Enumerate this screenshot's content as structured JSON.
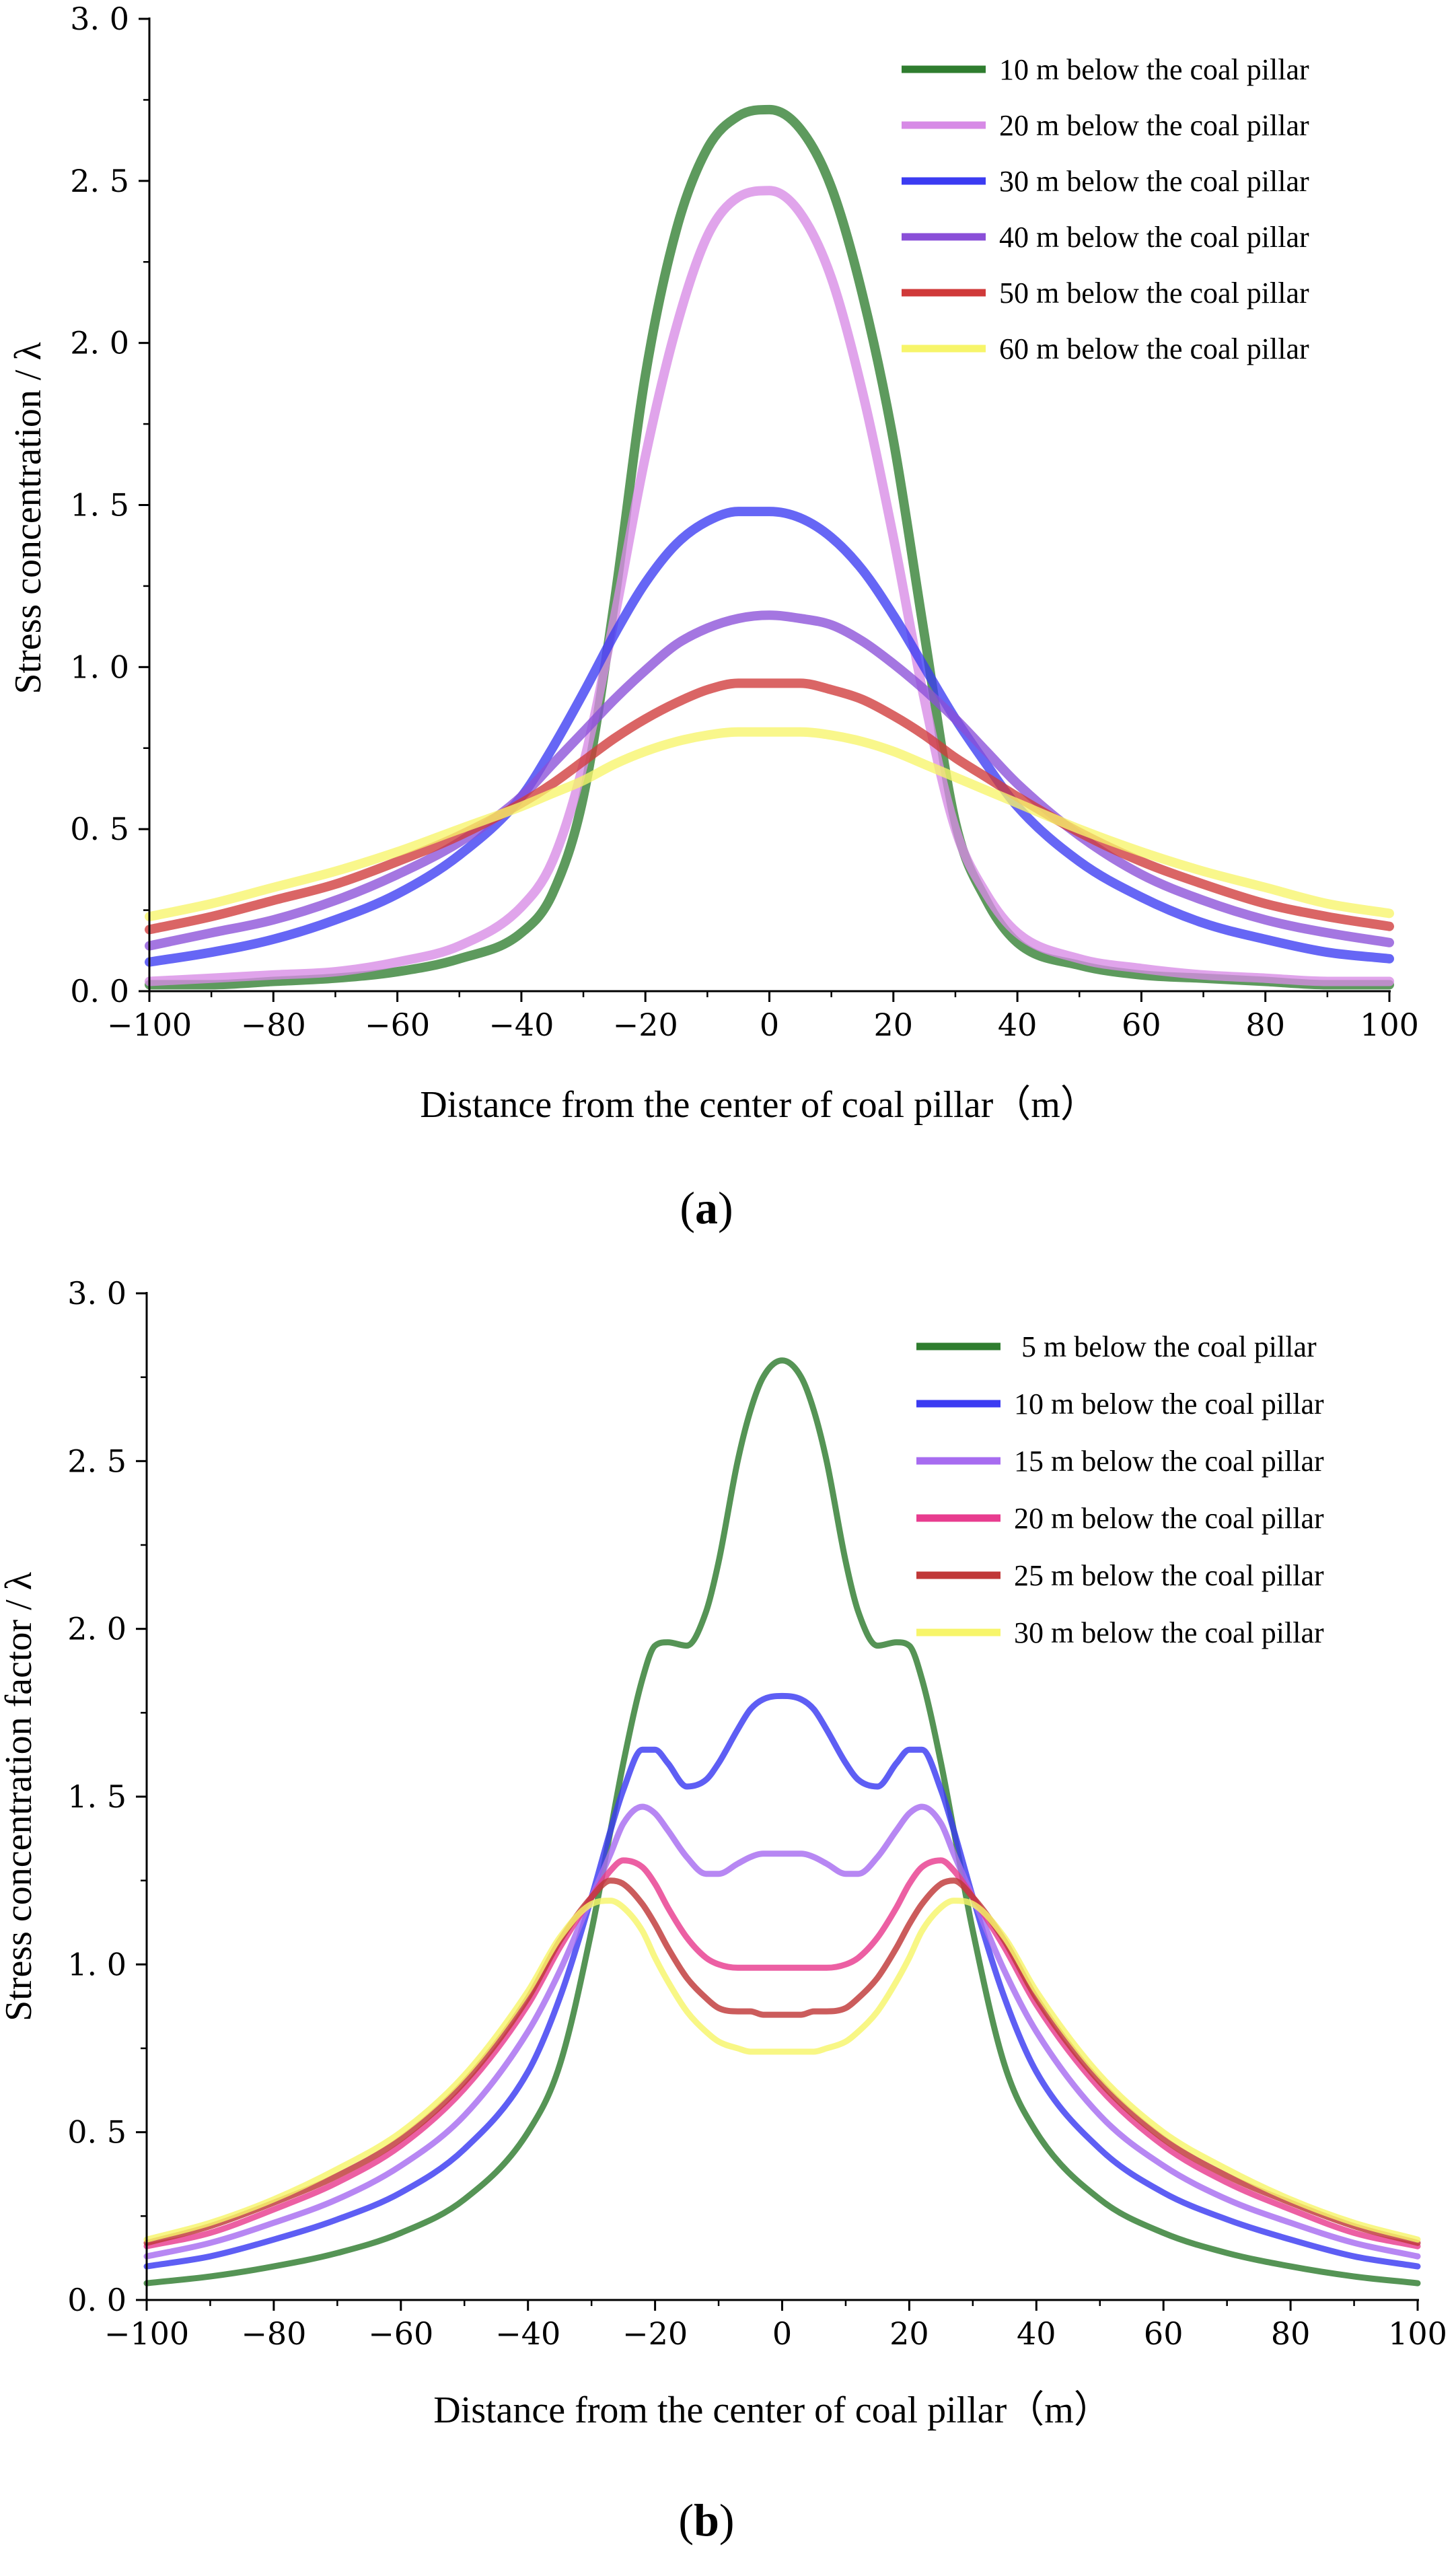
{
  "chart_data": [
    {
      "type": "line",
      "panel": "a",
      "caption_open": "(",
      "caption_letter": "a",
      "caption_close": ")",
      "xlabel": "Distance from the center of coal pillar（m）",
      "ylabel": "Stress concentration / λ",
      "xlim": [
        -100,
        100
      ],
      "ylim": [
        0,
        3.0
      ],
      "xticks": [
        -100,
        -80,
        -60,
        -40,
        -20,
        0,
        20,
        40,
        60,
        80,
        100
      ],
      "xtick_labels": [
        "−100",
        "−80",
        "−60",
        "−40",
        "−20",
        "0",
        "20",
        "40",
        "60",
        "80",
        "100"
      ],
      "yticks": [
        0,
        0.5,
        1.0,
        1.5,
        2.0,
        2.5,
        3.0
      ],
      "ytick_labels": [
        "0. 0",
        "0. 5",
        "1. 0",
        "1. 5",
        "2. 0",
        "2. 5",
        "3. 0"
      ],
      "grid": false,
      "legend_position": "top-right",
      "x": [
        -100,
        -90,
        -80,
        -70,
        -60,
        -50,
        -40,
        -35,
        -30,
        -25,
        -20,
        -15,
        -10,
        -5,
        0,
        5,
        10,
        15,
        20,
        25,
        30,
        35,
        40,
        50,
        60,
        70,
        80,
        90,
        100
      ],
      "series": [
        {
          "name": "10 m below the coal pillar",
          "color": "#2f7d2f",
          "values": [
            0.02,
            0.02,
            0.03,
            0.04,
            0.06,
            0.1,
            0.18,
            0.3,
            0.6,
            1.2,
            1.9,
            2.35,
            2.6,
            2.7,
            2.72,
            2.66,
            2.48,
            2.15,
            1.7,
            1.1,
            0.52,
            0.28,
            0.15,
            0.08,
            0.05,
            0.04,
            0.03,
            0.02,
            0.02
          ]
        },
        {
          "name": "20 m below the coal pillar",
          "color": "#d78ae6",
          "values": [
            0.03,
            0.04,
            0.05,
            0.06,
            0.09,
            0.14,
            0.26,
            0.4,
            0.7,
            1.15,
            1.65,
            2.05,
            2.33,
            2.45,
            2.47,
            2.4,
            2.2,
            1.85,
            1.4,
            0.9,
            0.5,
            0.3,
            0.18,
            0.1,
            0.07,
            0.05,
            0.04,
            0.03,
            0.03
          ]
        },
        {
          "name": "30 m below the coal pillar",
          "color": "#3b3bf2",
          "values": [
            0.09,
            0.12,
            0.16,
            0.22,
            0.3,
            0.42,
            0.6,
            0.75,
            0.92,
            1.1,
            1.26,
            1.38,
            1.45,
            1.48,
            1.48,
            1.46,
            1.4,
            1.3,
            1.16,
            1.0,
            0.84,
            0.7,
            0.57,
            0.4,
            0.29,
            0.21,
            0.16,
            0.12,
            0.1
          ]
        },
        {
          "name": "40 m below the coal pillar",
          "color": "#8a4fd8",
          "values": [
            0.14,
            0.18,
            0.22,
            0.28,
            0.36,
            0.46,
            0.6,
            0.7,
            0.8,
            0.9,
            0.99,
            1.07,
            1.12,
            1.15,
            1.16,
            1.15,
            1.13,
            1.08,
            1.01,
            0.93,
            0.84,
            0.74,
            0.64,
            0.48,
            0.36,
            0.28,
            0.22,
            0.18,
            0.15
          ]
        },
        {
          "name": "50 m below the coal pillar",
          "color": "#d03a3a",
          "values": [
            0.19,
            0.23,
            0.28,
            0.33,
            0.4,
            0.48,
            0.58,
            0.64,
            0.71,
            0.78,
            0.84,
            0.89,
            0.93,
            0.95,
            0.95,
            0.95,
            0.93,
            0.9,
            0.85,
            0.79,
            0.72,
            0.66,
            0.6,
            0.49,
            0.4,
            0.33,
            0.27,
            0.23,
            0.2
          ]
        },
        {
          "name": "60 m below the coal pillar",
          "color": "#f7f56a",
          "values": [
            0.23,
            0.27,
            0.32,
            0.37,
            0.43,
            0.5,
            0.57,
            0.61,
            0.65,
            0.7,
            0.74,
            0.77,
            0.79,
            0.8,
            0.8,
            0.8,
            0.79,
            0.77,
            0.74,
            0.7,
            0.66,
            0.62,
            0.58,
            0.5,
            0.43,
            0.37,
            0.32,
            0.27,
            0.24
          ]
        }
      ]
    },
    {
      "type": "line",
      "panel": "b",
      "caption_open": "(",
      "caption_letter": "b",
      "caption_close": ")",
      "xlabel": "Distance from the center of coal pillar（m）",
      "ylabel": "Stress concentration factor / λ",
      "xlim": [
        -100,
        100
      ],
      "ylim": [
        0,
        3.0
      ],
      "xticks": [
        -100,
        -80,
        -60,
        -40,
        -20,
        0,
        20,
        40,
        60,
        80,
        100
      ],
      "xtick_labels": [
        "−100",
        "−80",
        "−60",
        "−40",
        "−20",
        "0",
        "20",
        "40",
        "60",
        "80",
        "100"
      ],
      "yticks": [
        0,
        0.5,
        1.0,
        1.5,
        2.0,
        2.5,
        3.0
      ],
      "ytick_labels": [
        "0. 0",
        "0. 5",
        "1. 0",
        "1. 5",
        "2. 0",
        "2. 5",
        "3. 0"
      ],
      "grid": false,
      "legend_position": "top-right",
      "x": [
        -100,
        -90,
        -80,
        -70,
        -60,
        -50,
        -40,
        -35,
        -30,
        -27,
        -25,
        -22,
        -20,
        -18,
        -15,
        -12,
        -10,
        -7,
        -5,
        -3,
        0,
        3,
        5,
        7,
        10,
        12,
        15,
        18,
        20,
        22,
        25,
        27,
        30,
        35,
        40,
        50,
        60,
        70,
        80,
        90,
        100
      ],
      "series": [
        {
          "name": " 5 m below the coal pillar",
          "color": "#2f7d2f",
          "values": [
            0.05,
            0.07,
            0.1,
            0.14,
            0.2,
            0.3,
            0.5,
            0.7,
            1.1,
            1.4,
            1.6,
            1.85,
            1.95,
            1.96,
            1.95,
            2.05,
            2.2,
            2.5,
            2.65,
            2.75,
            2.8,
            2.75,
            2.65,
            2.5,
            2.2,
            2.05,
            1.95,
            1.96,
            1.95,
            1.85,
            1.6,
            1.4,
            1.1,
            0.7,
            0.5,
            0.3,
            0.2,
            0.14,
            0.1,
            0.07,
            0.05
          ]
        },
        {
          "name": "10 m below the coal pillar",
          "color": "#3b3bf2",
          "values": [
            0.1,
            0.13,
            0.18,
            0.24,
            0.32,
            0.45,
            0.68,
            0.9,
            1.2,
            1.4,
            1.52,
            1.64,
            1.64,
            1.6,
            1.53,
            1.55,
            1.6,
            1.7,
            1.76,
            1.79,
            1.8,
            1.79,
            1.76,
            1.7,
            1.6,
            1.55,
            1.53,
            1.6,
            1.64,
            1.64,
            1.52,
            1.4,
            1.2,
            0.9,
            0.68,
            0.45,
            0.32,
            0.24,
            0.18,
            0.13,
            0.1
          ]
        },
        {
          "name": "15 m below the coal pillar",
          "color": "#a76cf0",
          "values": [
            0.13,
            0.17,
            0.23,
            0.3,
            0.4,
            0.55,
            0.8,
            0.98,
            1.2,
            1.33,
            1.42,
            1.47,
            1.45,
            1.4,
            1.32,
            1.27,
            1.27,
            1.3,
            1.32,
            1.33,
            1.33,
            1.33,
            1.32,
            1.3,
            1.27,
            1.27,
            1.32,
            1.4,
            1.45,
            1.47,
            1.42,
            1.33,
            1.2,
            0.98,
            0.8,
            0.55,
            0.4,
            0.3,
            0.23,
            0.17,
            0.13
          ]
        },
        {
          "name": "20 m below the coal pillar",
          "color": "#e83c8f",
          "values": [
            0.16,
            0.2,
            0.27,
            0.35,
            0.46,
            0.63,
            0.88,
            1.05,
            1.2,
            1.28,
            1.31,
            1.29,
            1.24,
            1.17,
            1.08,
            1.02,
            1.0,
            0.99,
            0.99,
            0.99,
            0.99,
            0.99,
            0.99,
            0.99,
            1.0,
            1.02,
            1.08,
            1.17,
            1.24,
            1.29,
            1.31,
            1.28,
            1.2,
            1.05,
            0.88,
            0.63,
            0.46,
            0.35,
            0.27,
            0.2,
            0.16
          ]
        },
        {
          "name": "25 m below the coal pillar",
          "color": "#c03838",
          "values": [
            0.17,
            0.22,
            0.29,
            0.37,
            0.48,
            0.65,
            0.9,
            1.07,
            1.2,
            1.25,
            1.24,
            1.18,
            1.12,
            1.05,
            0.96,
            0.9,
            0.87,
            0.86,
            0.86,
            0.85,
            0.85,
            0.85,
            0.86,
            0.86,
            0.87,
            0.9,
            0.96,
            1.05,
            1.12,
            1.18,
            1.24,
            1.25,
            1.2,
            1.07,
            0.9,
            0.65,
            0.48,
            0.37,
            0.29,
            0.22,
            0.17
          ]
        },
        {
          "name": "30 m below the coal pillar",
          "color": "#f7f56a",
          "values": [
            0.18,
            0.23,
            0.3,
            0.39,
            0.5,
            0.67,
            0.92,
            1.08,
            1.18,
            1.19,
            1.17,
            1.1,
            1.02,
            0.95,
            0.86,
            0.8,
            0.77,
            0.75,
            0.74,
            0.74,
            0.74,
            0.74,
            0.74,
            0.75,
            0.77,
            0.8,
            0.86,
            0.95,
            1.02,
            1.1,
            1.17,
            1.19,
            1.18,
            1.08,
            0.92,
            0.67,
            0.5,
            0.39,
            0.3,
            0.23,
            0.18
          ]
        }
      ]
    }
  ]
}
